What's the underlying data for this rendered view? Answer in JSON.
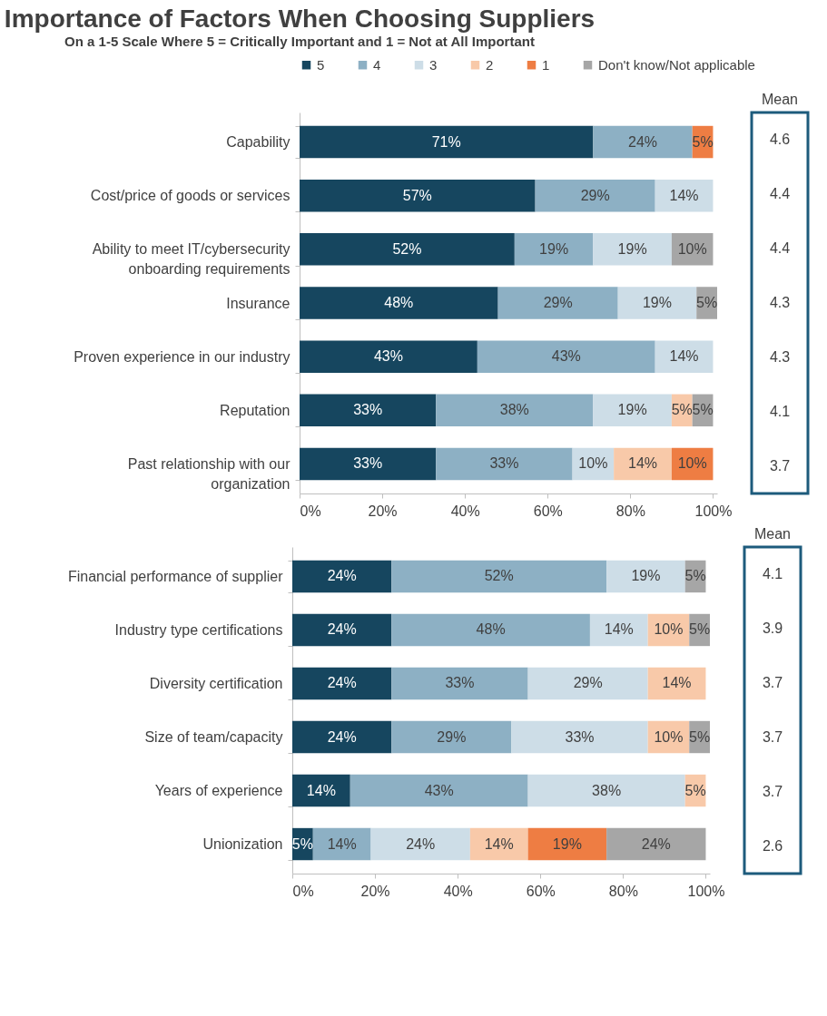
{
  "chart_data": [
    {
      "type": "bar",
      "orientation": "horizontal",
      "stacked": true,
      "title": "Importance of Factors When Choosing Suppliers",
      "subtitle": "On a 1-5 Scale Where 5 = Critically Important and 1 = Not at All Important",
      "categories": [
        "Capability",
        "Cost/price of goods or services",
        "Ability to meet IT/cybersecurity onboarding requirements",
        "Insurance",
        "Proven experience in our industry",
        "Reputation",
        "Past relationship with our organization"
      ],
      "series": [
        {
          "name": "5",
          "color": "#16465f",
          "values": [
            71,
            57,
            52,
            48,
            43,
            33,
            33
          ],
          "value_labels": [
            "71%",
            "57%",
            "52%",
            "48%",
            "43%",
            "33%",
            "33%"
          ]
        },
        {
          "name": "4",
          "color": "#8db0c4",
          "values": [
            24,
            29,
            19,
            29,
            43,
            38,
            33
          ],
          "value_labels": [
            "24%",
            "29%",
            "19%",
            "29%",
            "43%",
            "38%",
            "33%"
          ]
        },
        {
          "name": "3",
          "color": "#cddde7",
          "values": [
            0,
            14,
            19,
            19,
            14,
            19,
            10
          ],
          "value_labels": [
            null,
            "14%",
            "19%",
            "19%",
            "14%",
            "19%",
            "10%"
          ]
        },
        {
          "name": "2",
          "color": "#f8c9a9",
          "values": [
            0,
            0,
            0,
            0,
            0,
            5,
            14
          ],
          "value_labels": [
            null,
            null,
            null,
            null,
            null,
            "5%",
            "14%"
          ]
        },
        {
          "name": "1",
          "color": "#ee7d43",
          "values": [
            5,
            0,
            0,
            0,
            0,
            0,
            10
          ],
          "value_labels": [
            "5%",
            null,
            null,
            null,
            null,
            null,
            "10%"
          ]
        },
        {
          "name": "Don't know/Not applicable",
          "color": "#a6a6a6",
          "values": [
            0,
            0,
            10,
            5,
            0,
            5,
            0
          ],
          "value_labels": [
            null,
            null,
            "10%",
            "5%",
            null,
            "5%",
            null
          ]
        }
      ],
      "xlim": [
        0,
        101
      ],
      "xticks": [
        {
          "value": 0,
          "label": "0%"
        },
        {
          "value": 20,
          "label": "20%"
        },
        {
          "value": 40,
          "label": "40%"
        },
        {
          "value": 60,
          "label": "60%"
        },
        {
          "value": 80,
          "label": "80%"
        },
        {
          "value": 100,
          "label": "100%"
        }
      ],
      "legend": "top",
      "annotations": [
        "Mean",
        "4.6",
        "4.4",
        "4.4",
        "4.3",
        "4.3",
        "4.1",
        "3.7"
      ]
    },
    {
      "type": "bar",
      "orientation": "horizontal",
      "stacked": true,
      "categories": [
        "Financial performance of supplier",
        "Industry type certifications",
        "Diversity certification",
        "Size of team/capacity",
        "Years of experience",
        "Unionization"
      ],
      "series": [
        {
          "color": "#16465f",
          "values": [
            24,
            24,
            24,
            24,
            14,
            5
          ],
          "value_labels": [
            "24%",
            "24%",
            "24%",
            "24%",
            "14%",
            "5%"
          ]
        },
        {
          "color": "#8db0c4",
          "values": [
            52,
            48,
            33,
            29,
            43,
            14
          ],
          "value_labels": [
            "52%",
            "48%",
            "33%",
            "29%",
            "43%",
            "14%"
          ]
        },
        {
          "color": "#cddde7",
          "values": [
            19,
            14,
            29,
            33,
            38,
            24
          ],
          "value_labels": [
            "19%",
            "14%",
            "29%",
            "33%",
            "38%",
            "24%"
          ]
        },
        {
          "color": "#f8c9a9",
          "values": [
            0,
            10,
            14,
            10,
            5,
            14
          ],
          "value_labels": [
            null,
            "10%",
            "14%",
            "10%",
            "5%",
            "14%"
          ]
        },
        {
          "color": "#ee7d43",
          "values": [
            0,
            0,
            0,
            0,
            0,
            19
          ],
          "value_labels": [
            null,
            null,
            null,
            null,
            null,
            "19%"
          ]
        },
        {
          "color": "#a6a6a6",
          "values": [
            5,
            5,
            0,
            5,
            0,
            24
          ],
          "value_labels": [
            "5%",
            "5%",
            null,
            "5%",
            null,
            "24%"
          ]
        }
      ],
      "xlim": [
        0,
        101
      ],
      "xticks": [
        {
          "value": 0,
          "label": "0%"
        },
        {
          "value": 20,
          "label": "20%"
        },
        {
          "value": 40,
          "label": "40%"
        },
        {
          "value": 60,
          "label": "60%"
        },
        {
          "value": 80,
          "label": "80%"
        },
        {
          "value": 100,
          "label": "100%"
        }
      ],
      "annotations": [
        "Mean",
        "4.1",
        "3.9",
        "3.7",
        "3.7",
        "3.7",
        "2.6"
      ]
    }
  ]
}
